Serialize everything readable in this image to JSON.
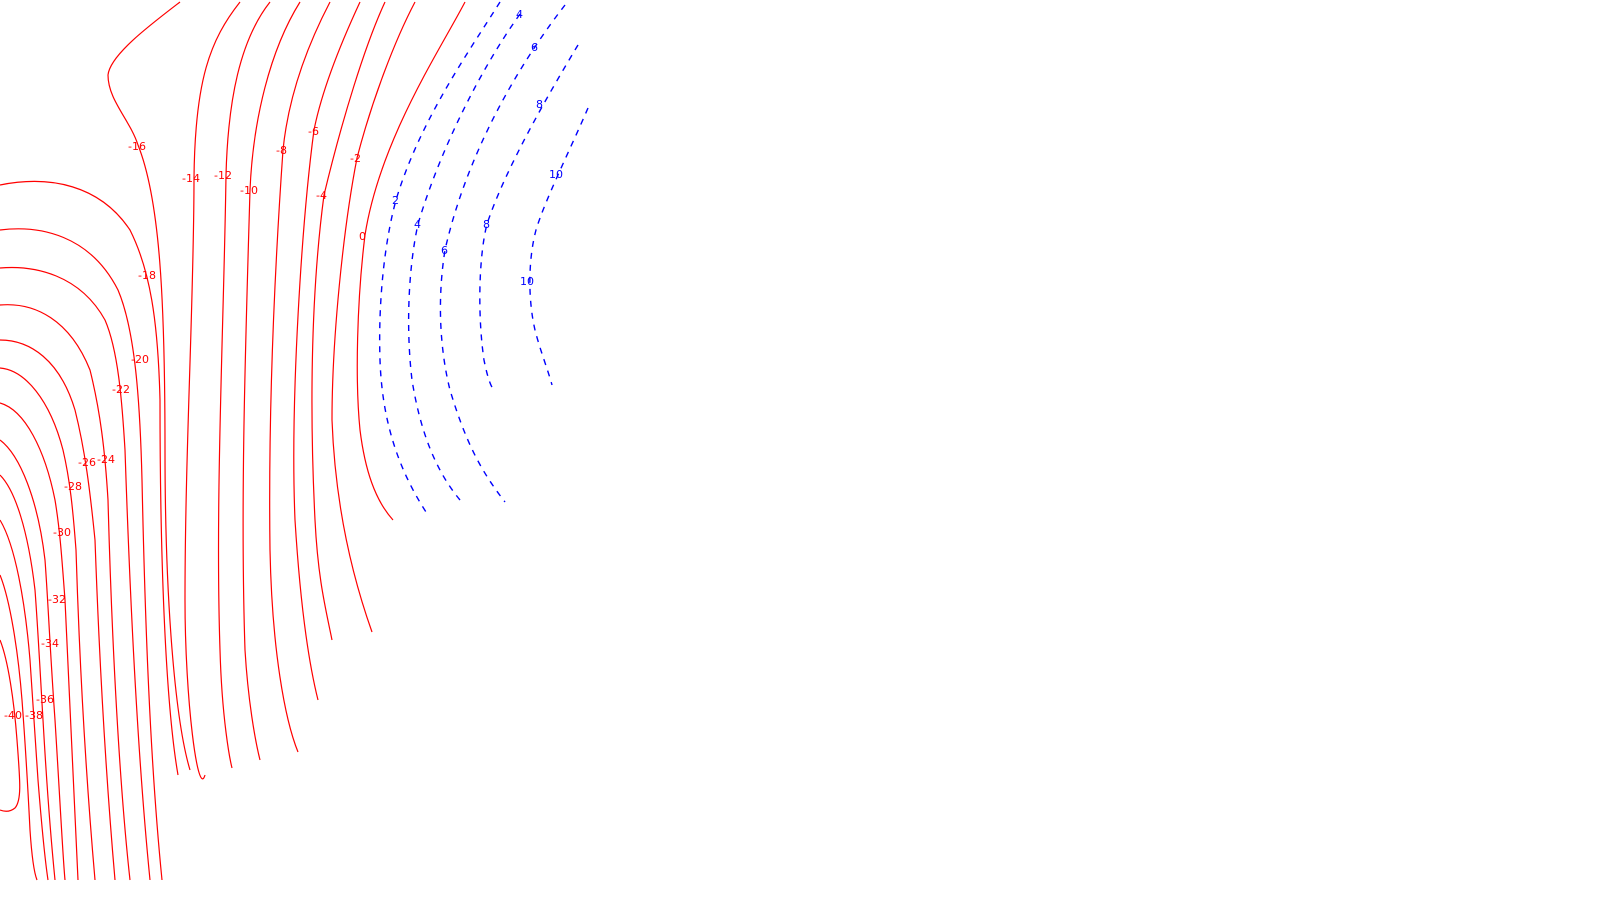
{
  "colors": {
    "negative": "#ff0000",
    "positive": "#0000ff",
    "background": "#ffffff"
  },
  "contour_labels": {
    "negative": [
      "-16",
      "-14",
      "-12",
      "-10",
      "-8",
      "-6",
      "-4",
      "-2",
      "0",
      "-18",
      "-20",
      "-22",
      "-24",
      "-26",
      "-28",
      "-30",
      "-32",
      "-34",
      "-36",
      "-38",
      "-40"
    ],
    "positive": [
      "4",
      "6",
      "8",
      "10",
      "2",
      "4",
      "6",
      "8",
      "10"
    ]
  }
}
